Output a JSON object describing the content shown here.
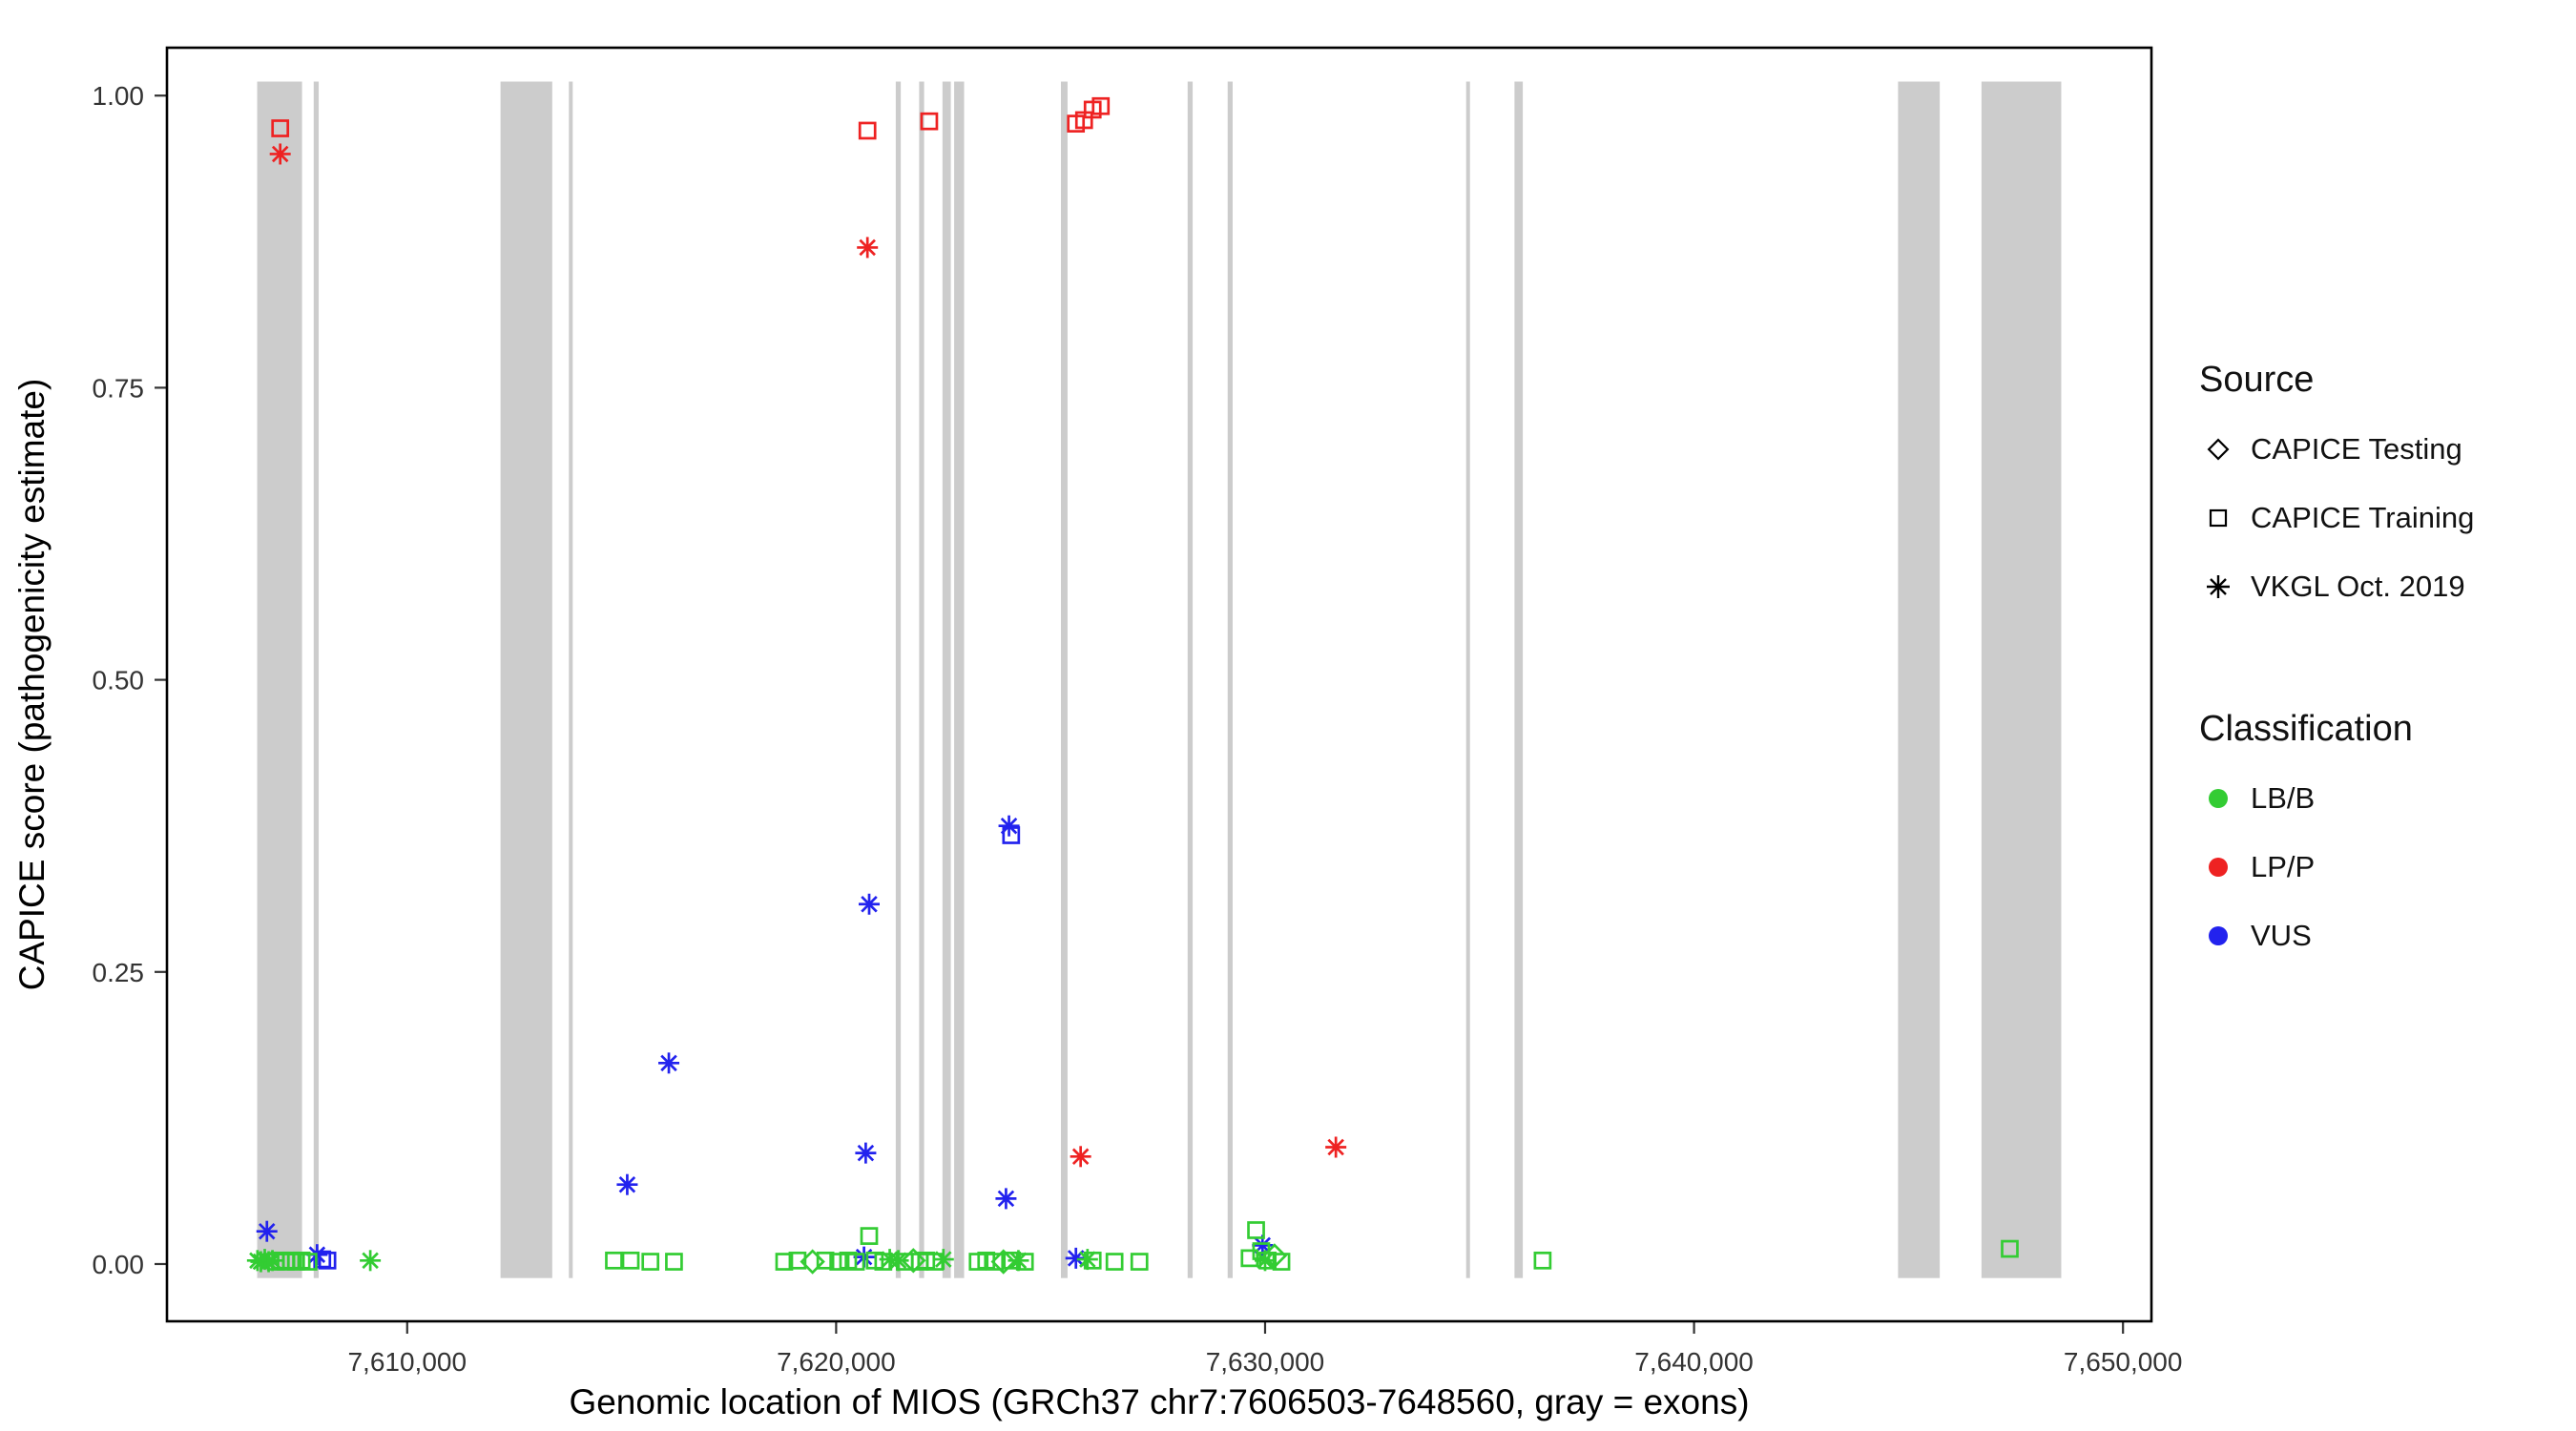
{
  "figure": {
    "background": "#ffffff"
  },
  "chart_data": {
    "type": "scatter",
    "title": "",
    "xlabel": "Genomic location of MIOS (GRCh37 chr7:7606503-7648560, gray = exons)",
    "ylabel": "CAPICE score (pathogenicity estimate)",
    "xlim": [
      7604400,
      7650663
    ],
    "ylim": [
      -0.049,
      1.041
    ],
    "x_ticks": [
      7610000,
      7620000,
      7630000,
      7640000,
      7650000
    ],
    "x_tick_labels": [
      "7,610,000",
      "7,620,000",
      "7,630,000",
      "7,640,000",
      "7,650,000"
    ],
    "y_ticks": [
      0,
      0.25,
      0.5,
      0.75,
      1
    ],
    "y_tick_labels": [
      "0.00",
      "0.25",
      "0.50",
      "0.75",
      "1.00"
    ],
    "grid": false,
    "panel_border_color": "#000000",
    "exon_color": "#cccccc",
    "exon_band_y": [
      -0.012,
      1.012
    ],
    "exons": [
      [
        7606503,
        7607549
      ],
      [
        7607821,
        7607938
      ],
      [
        7612176,
        7613381
      ],
      [
        7613770,
        7613848
      ],
      [
        7621390,
        7621507
      ],
      [
        7621935,
        7622051
      ],
      [
        7622479,
        7622673
      ],
      [
        7622751,
        7622984
      ],
      [
        7625240,
        7625395
      ],
      [
        7628194,
        7628311
      ],
      [
        7629127,
        7629244
      ],
      [
        7634687,
        7634764
      ],
      [
        7635814,
        7636008
      ],
      [
        7644756,
        7645728
      ],
      [
        7646701,
        7648560
      ]
    ],
    "class_colors": {
      "LB/B": "#33cc33",
      "LP/P": "#ee2222",
      "VUS": "#2222ee"
    },
    "source_markers": {
      "testing": "diamond",
      "training": "square",
      "vkgl": "asterisk"
    },
    "points": [
      {
        "x": 7607040,
        "y": 0.972,
        "cls": "LP/P",
        "src": "training"
      },
      {
        "x": 7607040,
        "y": 0.95,
        "cls": "LP/P",
        "src": "vkgl"
      },
      {
        "x": 7620730,
        "y": 0.97,
        "cls": "LP/P",
        "src": "training"
      },
      {
        "x": 7620730,
        "y": 0.87,
        "cls": "LP/P",
        "src": "vkgl"
      },
      {
        "x": 7622170,
        "y": 0.978,
        "cls": "LP/P",
        "src": "training"
      },
      {
        "x": 7625590,
        "y": 0.976,
        "cls": "LP/P",
        "src": "training"
      },
      {
        "x": 7625780,
        "y": 0.979,
        "cls": "LP/P",
        "src": "training"
      },
      {
        "x": 7625980,
        "y": 0.988,
        "cls": "LP/P",
        "src": "training"
      },
      {
        "x": 7626170,
        "y": 0.991,
        "cls": "LP/P",
        "src": "training"
      },
      {
        "x": 7625700,
        "y": 0.092,
        "cls": "LP/P",
        "src": "vkgl"
      },
      {
        "x": 7631650,
        "y": 0.1,
        "cls": "LP/P",
        "src": "vkgl"
      },
      {
        "x": 7624030,
        "y": 0.375,
        "cls": "VUS",
        "src": "vkgl"
      },
      {
        "x": 7624080,
        "y": 0.367,
        "cls": "VUS",
        "src": "training"
      },
      {
        "x": 7620770,
        "y": 0.308,
        "cls": "VUS",
        "src": "vkgl"
      },
      {
        "x": 7616100,
        "y": 0.172,
        "cls": "VUS",
        "src": "vkgl"
      },
      {
        "x": 7620690,
        "y": 0.095,
        "cls": "VUS",
        "src": "vkgl"
      },
      {
        "x": 7615130,
        "y": 0.068,
        "cls": "VUS",
        "src": "vkgl"
      },
      {
        "x": 7623960,
        "y": 0.056,
        "cls": "VUS",
        "src": "vkgl"
      },
      {
        "x": 7606730,
        "y": 0.028,
        "cls": "VUS",
        "src": "vkgl"
      },
      {
        "x": 7607900,
        "y": 0.008,
        "cls": "VUS",
        "src": "vkgl"
      },
      {
        "x": 7608020,
        "y": 0.004,
        "cls": "VUS",
        "src": "training"
      },
      {
        "x": 7608140,
        "y": 0.003,
        "cls": "VUS",
        "src": "training"
      },
      {
        "x": 7620650,
        "y": 0.006,
        "cls": "VUS",
        "src": "vkgl"
      },
      {
        "x": 7625590,
        "y": 0.005,
        "cls": "VUS",
        "src": "vkgl"
      },
      {
        "x": 7629940,
        "y": 0.016,
        "cls": "VUS",
        "src": "vkgl"
      },
      {
        "x": 7606510,
        "y": 0.003,
        "cls": "LB/B",
        "src": "vkgl"
      },
      {
        "x": 7606590,
        "y": 0.002,
        "cls": "LB/B",
        "src": "vkgl"
      },
      {
        "x": 7606680,
        "y": 0.004,
        "cls": "LB/B",
        "src": "vkgl"
      },
      {
        "x": 7606770,
        "y": 0.002,
        "cls": "LB/B",
        "src": "vkgl"
      },
      {
        "x": 7606860,
        "y": 0.003,
        "cls": "LB/B",
        "src": "vkgl"
      },
      {
        "x": 7606940,
        "y": 0.002,
        "cls": "LB/B",
        "src": "training"
      },
      {
        "x": 7607050,
        "y": 0.003,
        "cls": "LB/B",
        "src": "training"
      },
      {
        "x": 7607170,
        "y": 0.002,
        "cls": "LB/B",
        "src": "training"
      },
      {
        "x": 7607290,
        "y": 0.003,
        "cls": "LB/B",
        "src": "training"
      },
      {
        "x": 7607410,
        "y": 0.002,
        "cls": "LB/B",
        "src": "training"
      },
      {
        "x": 7607540,
        "y": 0.003,
        "cls": "LB/B",
        "src": "training"
      },
      {
        "x": 7607700,
        "y": 0.002,
        "cls": "LB/B",
        "src": "training"
      },
      {
        "x": 7609140,
        "y": 0.003,
        "cls": "LB/B",
        "src": "vkgl"
      },
      {
        "x": 7614820,
        "y": 0.003,
        "cls": "LB/B",
        "src": "training"
      },
      {
        "x": 7615210,
        "y": 0.003,
        "cls": "LB/B",
        "src": "training"
      },
      {
        "x": 7615670,
        "y": 0.002,
        "cls": "LB/B",
        "src": "training"
      },
      {
        "x": 7616220,
        "y": 0.002,
        "cls": "LB/B",
        "src": "training"
      },
      {
        "x": 7618790,
        "y": 0.002,
        "cls": "LB/B",
        "src": "training"
      },
      {
        "x": 7619100,
        "y": 0.003,
        "cls": "LB/B",
        "src": "training"
      },
      {
        "x": 7619450,
        "y": 0.002,
        "cls": "LB/B",
        "src": "testing"
      },
      {
        "x": 7619750,
        "y": 0.003,
        "cls": "LB/B",
        "src": "training"
      },
      {
        "x": 7620050,
        "y": 0.002,
        "cls": "LB/B",
        "src": "training"
      },
      {
        "x": 7620280,
        "y": 0.003,
        "cls": "LB/B",
        "src": "training"
      },
      {
        "x": 7620460,
        "y": 0.002,
        "cls": "LB/B",
        "src": "training"
      },
      {
        "x": 7620770,
        "y": 0.024,
        "cls": "LB/B",
        "src": "training"
      },
      {
        "x": 7620900,
        "y": 0.003,
        "cls": "LB/B",
        "src": "training"
      },
      {
        "x": 7621100,
        "y": 0.002,
        "cls": "LB/B",
        "src": "training"
      },
      {
        "x": 7621250,
        "y": 0.004,
        "cls": "LB/B",
        "src": "vkgl"
      },
      {
        "x": 7621450,
        "y": 0.003,
        "cls": "LB/B",
        "src": "vkgl"
      },
      {
        "x": 7621600,
        "y": 0.002,
        "cls": "LB/B",
        "src": "training"
      },
      {
        "x": 7621800,
        "y": 0.003,
        "cls": "LB/B",
        "src": "testing"
      },
      {
        "x": 7621950,
        "y": 0.002,
        "cls": "LB/B",
        "src": "training"
      },
      {
        "x": 7622100,
        "y": 0.003,
        "cls": "LB/B",
        "src": "training"
      },
      {
        "x": 7622300,
        "y": 0.002,
        "cls": "LB/B",
        "src": "training"
      },
      {
        "x": 7622500,
        "y": 0.004,
        "cls": "LB/B",
        "src": "vkgl"
      },
      {
        "x": 7623300,
        "y": 0.002,
        "cls": "LB/B",
        "src": "training"
      },
      {
        "x": 7623500,
        "y": 0.003,
        "cls": "LB/B",
        "src": "training"
      },
      {
        "x": 7623700,
        "y": 0.002,
        "cls": "LB/B",
        "src": "training"
      },
      {
        "x": 7623900,
        "y": 0.002,
        "cls": "LB/B",
        "src": "testing"
      },
      {
        "x": 7624100,
        "y": 0.003,
        "cls": "LB/B",
        "src": "training"
      },
      {
        "x": 7624250,
        "y": 0.003,
        "cls": "LB/B",
        "src": "vkgl"
      },
      {
        "x": 7624400,
        "y": 0.002,
        "cls": "LB/B",
        "src": "training"
      },
      {
        "x": 7625860,
        "y": 0.004,
        "cls": "LB/B",
        "src": "vkgl"
      },
      {
        "x": 7625980,
        "y": 0.003,
        "cls": "LB/B",
        "src": "training"
      },
      {
        "x": 7626490,
        "y": 0.002,
        "cls": "LB/B",
        "src": "training"
      },
      {
        "x": 7627070,
        "y": 0.002,
        "cls": "LB/B",
        "src": "training"
      },
      {
        "x": 7629640,
        "y": 0.005,
        "cls": "LB/B",
        "src": "training"
      },
      {
        "x": 7629790,
        "y": 0.029,
        "cls": "LB/B",
        "src": "training"
      },
      {
        "x": 7629910,
        "y": 0.011,
        "cls": "LB/B",
        "src": "training"
      },
      {
        "x": 7630000,
        "y": 0.003,
        "cls": "LB/B",
        "src": "vkgl"
      },
      {
        "x": 7630060,
        "y": 0.003,
        "cls": "LB/B",
        "src": "training"
      },
      {
        "x": 7630220,
        "y": 0.007,
        "cls": "LB/B",
        "src": "testing"
      },
      {
        "x": 7630380,
        "y": 0.002,
        "cls": "LB/B",
        "src": "training"
      },
      {
        "x": 7636470,
        "y": 0.003,
        "cls": "LB/B",
        "src": "training"
      },
      {
        "x": 7647360,
        "y": 0.013,
        "cls": "LB/B",
        "src": "training"
      }
    ]
  },
  "legend": {
    "source": {
      "title": "Source",
      "items": [
        {
          "label": "CAPICE Testing",
          "marker": "diamond"
        },
        {
          "label": "CAPICE Training",
          "marker": "square"
        },
        {
          "label": "VKGL Oct. 2019",
          "marker": "asterisk"
        }
      ]
    },
    "classification": {
      "title": "Classification",
      "items": [
        {
          "label": "LB/B",
          "color": "#33cc33"
        },
        {
          "label": "LP/P",
          "color": "#ee2222"
        },
        {
          "label": "VUS",
          "color": "#2222ee"
        }
      ]
    }
  }
}
